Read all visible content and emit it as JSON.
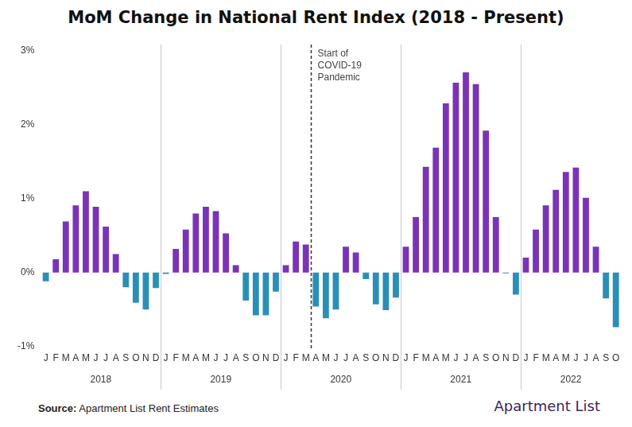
{
  "chart_data": {
    "type": "bar",
    "title": "MoM Change in National Rent Index (2018 - Present)",
    "categories": [
      "J",
      "F",
      "M",
      "A",
      "M",
      "J",
      "J",
      "A",
      "S",
      "O",
      "N",
      "D",
      "J",
      "F",
      "M",
      "A",
      "M",
      "J",
      "J",
      "A",
      "S",
      "O",
      "N",
      "D",
      "J",
      "F",
      "M",
      "A",
      "M",
      "J",
      "J",
      "A",
      "S",
      "O",
      "N",
      "D",
      "J",
      "F",
      "M",
      "A",
      "M",
      "J",
      "J",
      "A",
      "S",
      "O",
      "N",
      "D",
      "J",
      "F",
      "M",
      "A",
      "M",
      "J",
      "J",
      "A",
      "S",
      "O"
    ],
    "groups": [
      {
        "label": "2018",
        "count": 12
      },
      {
        "label": "2019",
        "count": 12
      },
      {
        "label": "2020",
        "count": 12
      },
      {
        "label": "2021",
        "count": 12
      },
      {
        "label": "2022",
        "count": 10
      }
    ],
    "values": [
      -0.12,
      0.18,
      0.69,
      0.91,
      1.1,
      0.89,
      0.62,
      0.25,
      -0.2,
      -0.41,
      -0.5,
      -0.21,
      -0.02,
      0.32,
      0.58,
      0.8,
      0.89,
      0.83,
      0.53,
      0.1,
      -0.38,
      -0.58,
      -0.58,
      -0.26,
      0.1,
      0.42,
      0.38,
      -0.46,
      -0.62,
      -0.5,
      0.35,
      0.27,
      -0.09,
      -0.43,
      -0.51,
      -0.34,
      0.35,
      0.75,
      1.43,
      1.69,
      2.29,
      2.57,
      2.71,
      2.55,
      1.92,
      0.75,
      -0.01,
      -0.3,
      0.2,
      0.58,
      0.91,
      1.12,
      1.36,
      1.42,
      1.01,
      0.35,
      -0.35,
      -0.74
    ],
    "colors": [
      "#2a8fb8",
      "#7a33b8",
      "#7a33b8",
      "#7a33b8",
      "#7a33b8",
      "#7a33b8",
      "#7a33b8",
      "#7a33b8",
      "#2a8fb8",
      "#2a8fb8",
      "#2a8fb8",
      "#2a8fb8",
      "#2a8fb8",
      "#7a33b8",
      "#7a33b8",
      "#7a33b8",
      "#7a33b8",
      "#7a33b8",
      "#7a33b8",
      "#7a33b8",
      "#2a8fb8",
      "#2a8fb8",
      "#2a8fb8",
      "#2a8fb8",
      "#7a33b8",
      "#7a33b8",
      "#7a33b8",
      "#2a8fb8",
      "#2a8fb8",
      "#2a8fb8",
      "#7a33b8",
      "#7a33b8",
      "#2a8fb8",
      "#2a8fb8",
      "#2a8fb8",
      "#2a8fb8",
      "#7a33b8",
      "#7a33b8",
      "#7a33b8",
      "#7a33b8",
      "#7a33b8",
      "#7a33b8",
      "#7a33b8",
      "#7a33b8",
      "#7a33b8",
      "#7a33b8",
      "#2a8fb8",
      "#2a8fb8",
      "#7a33b8",
      "#7a33b8",
      "#7a33b8",
      "#7a33b8",
      "#7a33b8",
      "#7a33b8",
      "#7a33b8",
      "#7a33b8",
      "#2a8fb8",
      "#2a8fb8"
    ],
    "ylim": [
      -1,
      3
    ],
    "yticks": [
      {
        "value": -1,
        "label": "-1%"
      },
      {
        "value": 0,
        "label": "0%"
      },
      {
        "value": 1,
        "label": "1%"
      },
      {
        "value": 2,
        "label": "2%"
      },
      {
        "value": 3,
        "label": "3%"
      }
    ],
    "grid": false,
    "annotation": {
      "text": [
        "Start of",
        "COVID-19",
        "Pandemic"
      ],
      "x": 26.5
    },
    "source": {
      "label": "Source:",
      "text": "Apartment List Rent Estimates"
    },
    "logo": "Apartment List"
  }
}
